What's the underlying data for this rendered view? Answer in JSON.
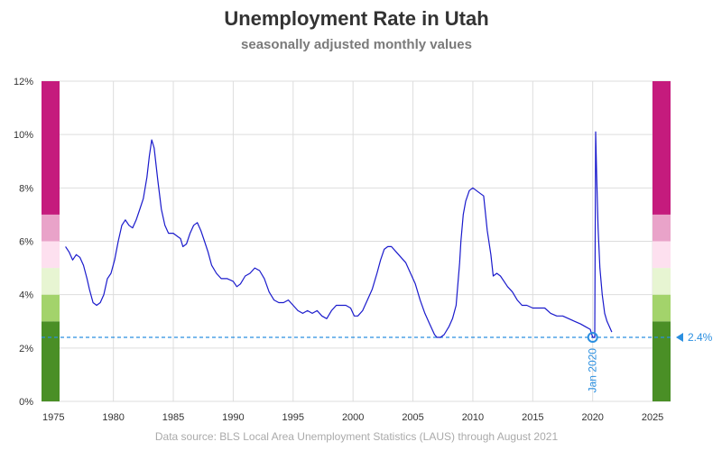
{
  "title": "Unemployment Rate in Utah",
  "subtitle": "seasonally adjusted monthly values",
  "footnote": "Data source: BLS Local Area Unemployment Statistics (LAUS) through August 2021",
  "chart_data": {
    "type": "line",
    "title": "Unemployment Rate in Utah",
    "subtitle": "seasonally adjusted monthly values",
    "xlabel": "",
    "ylabel": "",
    "xlim": [
      1974,
      2026.5
    ],
    "ylim": [
      0,
      12
    ],
    "x_ticks": [
      "1975",
      "1980",
      "1985",
      "1990",
      "1995",
      "2000",
      "2005",
      "2010",
      "2015",
      "2020",
      "2025"
    ],
    "y_ticks": [
      "0%",
      "2%",
      "4%",
      "6%",
      "8%",
      "10%",
      "12%"
    ],
    "grid": true,
    "line_color": "#1a1acc",
    "series": [
      {
        "x": [
          1976.0,
          1976.3,
          1976.6,
          1976.9,
          1977.2,
          1977.5,
          1977.8,
          1978.0,
          1978.3,
          1978.6,
          1978.9,
          1979.2,
          1979.5,
          1979.8,
          1980.1,
          1980.4,
          1980.7,
          1981.0,
          1981.3,
          1981.6,
          1981.9,
          1982.2,
          1982.5,
          1982.8,
          1983.0,
          1983.2,
          1983.4,
          1983.7,
          1984.0,
          1984.3,
          1984.6,
          1985.0,
          1985.3,
          1985.6,
          1985.8,
          1986.1,
          1986.4,
          1986.7,
          1987.0,
          1987.3,
          1987.6,
          1987.9,
          1988.2,
          1988.6,
          1989.0,
          1989.5,
          1990.0,
          1990.3,
          1990.6,
          1991.0,
          1991.4,
          1991.8,
          1992.2,
          1992.6,
          1993.0,
          1993.4,
          1993.8,
          1994.2,
          1994.6,
          1995.0,
          1995.4,
          1995.8,
          1996.2,
          1996.6,
          1997.0,
          1997.4,
          1997.8,
          1998.2,
          1998.6,
          1999.0,
          1999.4,
          1999.8,
          2000.1,
          2000.4,
          2000.8,
          2001.2,
          2001.6,
          2002.0,
          2002.3,
          2002.6,
          2002.9,
          2003.2,
          2003.6,
          2004.0,
          2004.4,
          2004.8,
          2005.2,
          2005.6,
          2006.0,
          2006.4,
          2006.8,
          2007.0,
          2007.3,
          2007.6,
          2008.0,
          2008.3,
          2008.6,
          2008.9,
          2009.0,
          2009.2,
          2009.4,
          2009.7,
          2010.0,
          2010.3,
          2010.6,
          2010.9,
          2011.2,
          2011.5,
          2011.7,
          2012.0,
          2012.3,
          2012.6,
          2012.9,
          2013.3,
          2013.7,
          2014.1,
          2014.5,
          2015.0,
          2015.5,
          2016.0,
          2016.5,
          2017.0,
          2017.5,
          2018.0,
          2018.5,
          2019.0,
          2019.4,
          2019.8,
          2020.0,
          2020.17,
          2020.25,
          2020.33,
          2020.45,
          2020.6,
          2020.8,
          2021.0,
          2021.2,
          2021.4,
          2021.6
        ],
        "values": [
          5.8,
          5.6,
          5.3,
          5.5,
          5.4,
          5.1,
          4.6,
          4.2,
          3.7,
          3.6,
          3.7,
          4.0,
          4.6,
          4.8,
          5.3,
          6.0,
          6.6,
          6.8,
          6.6,
          6.5,
          6.8,
          7.2,
          7.6,
          8.4,
          9.2,
          9.8,
          9.5,
          8.3,
          7.2,
          6.6,
          6.3,
          6.3,
          6.2,
          6.1,
          5.8,
          5.9,
          6.3,
          6.6,
          6.7,
          6.4,
          6.0,
          5.6,
          5.1,
          4.8,
          4.6,
          4.6,
          4.5,
          4.3,
          4.4,
          4.7,
          4.8,
          5.0,
          4.9,
          4.6,
          4.1,
          3.8,
          3.7,
          3.7,
          3.8,
          3.6,
          3.4,
          3.3,
          3.4,
          3.3,
          3.4,
          3.2,
          3.1,
          3.4,
          3.6,
          3.6,
          3.6,
          3.5,
          3.2,
          3.2,
          3.4,
          3.8,
          4.2,
          4.8,
          5.3,
          5.7,
          5.8,
          5.8,
          5.6,
          5.4,
          5.2,
          4.8,
          4.4,
          3.8,
          3.3,
          2.9,
          2.5,
          2.4,
          2.4,
          2.5,
          2.8,
          3.1,
          3.6,
          5.2,
          6.0,
          7.0,
          7.5,
          7.9,
          8.0,
          7.9,
          7.8,
          7.7,
          6.4,
          5.5,
          4.7,
          4.8,
          4.7,
          4.5,
          4.3,
          4.1,
          3.8,
          3.6,
          3.6,
          3.5,
          3.5,
          3.5,
          3.3,
          3.2,
          3.2,
          3.1,
          3.0,
          2.9,
          2.8,
          2.7,
          2.4,
          2.4,
          10.1,
          8.5,
          6.5,
          5.0,
          4.0,
          3.3,
          3.0,
          2.8,
          2.6
        ]
      }
    ],
    "reference": {
      "value": 2.4,
      "label": "2.4%",
      "marker_x": 2020.0,
      "marker_label": "Jan 2020"
    },
    "color_bands": [
      {
        "from": 0,
        "to": 3,
        "color": "#4a8f26"
      },
      {
        "from": 3,
        "to": 4,
        "color": "#a3d36b"
      },
      {
        "from": 4,
        "to": 5,
        "color": "#e7f5d2"
      },
      {
        "from": 5,
        "to": 6,
        "color": "#fde0ef"
      },
      {
        "from": 6,
        "to": 7,
        "color": "#e9a3c9"
      },
      {
        "from": 7,
        "to": 12,
        "color": "#c51b7d"
      }
    ],
    "band_placement": [
      "left",
      "right"
    ],
    "accent_color": "#2b8fe0"
  }
}
